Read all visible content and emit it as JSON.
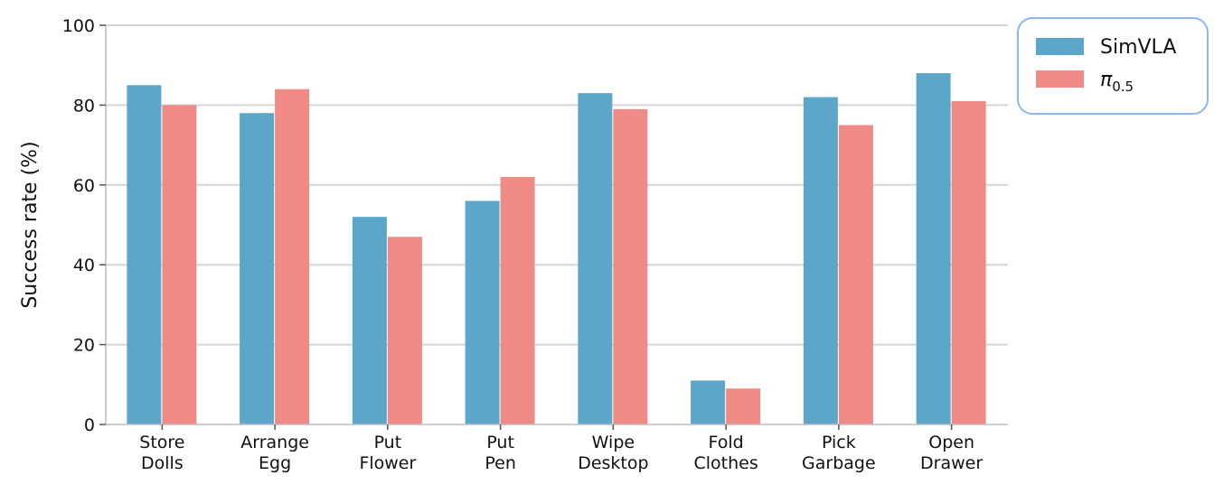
{
  "chart_data": {
    "type": "bar",
    "title": "",
    "xlabel": "",
    "ylabel": "Success rate (%)",
    "ylim": [
      0,
      100
    ],
    "yticks": [
      0,
      20,
      40,
      60,
      80,
      100
    ],
    "grid": "horizontal",
    "legend_placement": "outside-top-right",
    "categories": [
      [
        "Store",
        "Dolls"
      ],
      [
        "Arrange",
        "Egg"
      ],
      [
        "Put",
        "Flower"
      ],
      [
        "Put",
        "Pen"
      ],
      [
        "Wipe",
        "Desktop"
      ],
      [
        "Fold",
        "Clothes"
      ],
      [
        "Pick",
        "Garbage"
      ],
      [
        "Open",
        "Drawer"
      ]
    ],
    "series": [
      {
        "name": "SimVLA",
        "color": "#5ba6c9",
        "values": [
          85,
          78,
          52,
          56,
          83,
          11,
          82,
          88
        ]
      },
      {
        "name": "π0.5",
        "color": "#f08a84",
        "values": [
          80,
          84,
          47,
          62,
          79,
          9,
          75,
          81
        ]
      }
    ],
    "legend_border_color": "#8ab8f5"
  }
}
